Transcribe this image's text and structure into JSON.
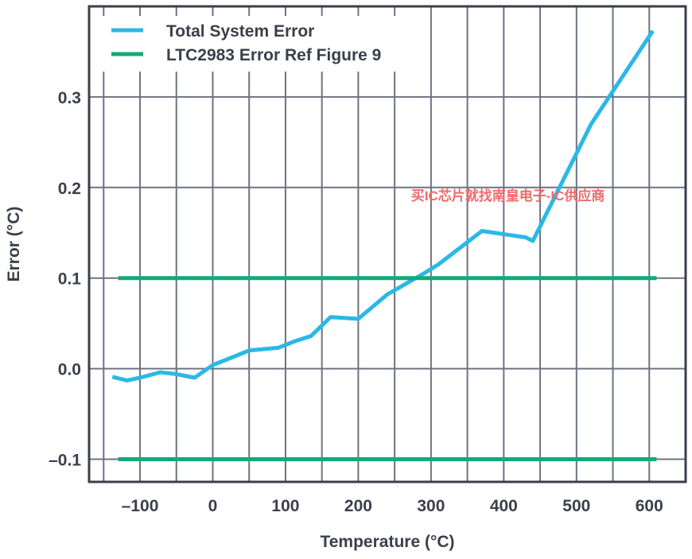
{
  "chart_data": {
    "type": "line",
    "title": "",
    "xlabel": "Temperature (°C)",
    "ylabel": "Error (°C)",
    "xlim": [
      -170,
      650
    ],
    "ylim": [
      -0.125,
      0.4
    ],
    "xticks": [
      -100,
      0,
      100,
      200,
      300,
      400,
      500,
      600
    ],
    "xtick_labels": [
      "–100",
      "0",
      "100",
      "200",
      "300",
      "400",
      "500",
      "600"
    ],
    "yticks": [
      -0.1,
      0.0,
      0.1,
      0.2,
      0.3
    ],
    "ytick_labels": [
      "–0.1",
      "0.0",
      "0.1",
      "0.2",
      "0.3"
    ],
    "xgrid": [
      -150,
      -100,
      -50,
      0,
      50,
      100,
      150,
      200,
      250,
      300,
      350,
      400,
      450,
      500,
      550,
      600
    ],
    "ygrid": [
      -0.1,
      0.0,
      0.1,
      0.2,
      0.3
    ],
    "grid": true,
    "legend_position": "top-left",
    "series": [
      {
        "name": "Total System Error",
        "color": "#2bb8e6",
        "x": [
          -138,
          -118,
          -100,
          -72,
          -50,
          -25,
          0,
          25,
          50,
          75,
          90,
          112,
          135,
          162,
          200,
          240,
          290,
          310,
          370,
          430,
          440,
          520,
          605
        ],
        "y": [
          -0.009,
          -0.013,
          -0.01,
          -0.004,
          -0.006,
          -0.01,
          0.004,
          0.012,
          0.02,
          0.022,
          0.023,
          0.03,
          0.036,
          0.057,
          0.055,
          0.082,
          0.105,
          0.115,
          0.152,
          0.145,
          0.141,
          0.27,
          0.373
        ]
      },
      {
        "name": "LTC2983 Error Ref Figure 9",
        "color": "#12a97c",
        "x": [
          -130,
          610
        ],
        "y": [
          0.1,
          0.1
        ]
      },
      {
        "name": "",
        "color": "#12a97c",
        "x": [
          -130,
          610
        ],
        "y": [
          -0.1,
          -0.1
        ]
      }
    ],
    "annotations": [
      {
        "text": "买IC芯片就找南皇电子-IC供应商",
        "x": 290,
        "y": 0.19,
        "color": "#f06a6a"
      }
    ]
  }
}
